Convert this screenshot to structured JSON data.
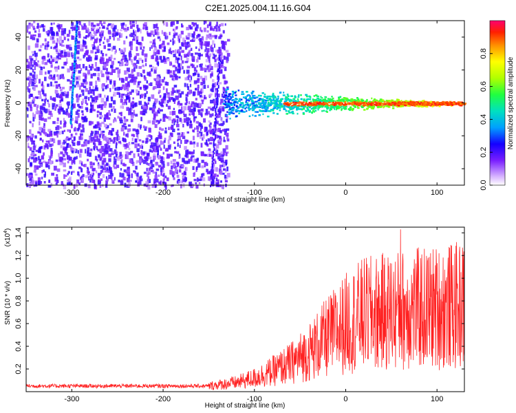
{
  "title": "C2E1.2025.004.11.16.G04",
  "chart_data": [
    {
      "type": "heatmap",
      "xlabel": "Height of straight line (km)",
      "ylabel": "Frequency (Hz)",
      "xlim": [
        -350,
        130
      ],
      "ylim": [
        -50,
        50
      ],
      "x_ticks": [
        "-300",
        "-200",
        "-100",
        "0",
        "100"
      ],
      "x_tick_values": [
        -300,
        -200,
        -100,
        0,
        100
      ],
      "y_ticks": [
        "-40",
        "-20",
        "0",
        "20",
        "40"
      ],
      "y_tick_values": [
        -40,
        -20,
        0,
        20,
        40
      ],
      "colorbar": {
        "label": "Normalized spectral amplitude",
        "range": [
          0,
          1
        ],
        "ticks": [
          "0.0",
          "0.2",
          "0.4",
          "0.6",
          "0.8"
        ],
        "tick_values": [
          0.0,
          0.2,
          0.4,
          0.6,
          0.8
        ]
      },
      "features": {
        "noise_region_x": [
          -350,
          -135
        ],
        "signal_line_freq_hz": 0,
        "signal_onset_x": -135,
        "sloped_trace": [
          {
            "x": -302,
            "y": -12
          },
          {
            "x": -295,
            "y": 50
          }
        ]
      }
    },
    {
      "type": "line",
      "xlabel": "Height of straight line (km)",
      "ylabel": "SNR (10 * v/v)",
      "y_scale_label": "(x10",
      "y_scale_exp": "4",
      "y_scale_close": ")",
      "xlim": [
        -350,
        130
      ],
      "ylim": [
        0,
        1.45
      ],
      "x_ticks": [
        "-300",
        "-200",
        "-100",
        "0",
        "100"
      ],
      "x_tick_values": [
        -300,
        -200,
        -100,
        0,
        100
      ],
      "y_ticks": [
        "0.2",
        "0.4",
        "0.6",
        "0.8",
        "1.0",
        "1.2",
        "1.4"
      ],
      "y_tick_values": [
        0.2,
        0.4,
        0.6,
        0.8,
        1.0,
        1.2,
        1.4
      ],
      "color": "#ff2020",
      "envelope": [
        {
          "x": -350,
          "y": 0.05
        },
        {
          "x": -150,
          "y": 0.05
        },
        {
          "x": -120,
          "y": 0.08
        },
        {
          "x": -100,
          "y": 0.12
        },
        {
          "x": -80,
          "y": 0.18
        },
        {
          "x": -60,
          "y": 0.25
        },
        {
          "x": -40,
          "y": 0.35
        },
        {
          "x": -20,
          "y": 0.48
        },
        {
          "x": 0,
          "y": 0.6
        },
        {
          "x": 20,
          "y": 0.68
        },
        {
          "x": 60,
          "y": 0.72
        },
        {
          "x": 100,
          "y": 0.74
        },
        {
          "x": 130,
          "y": 0.76
        }
      ],
      "peak": {
        "x": 60,
        "y": 1.43
      }
    }
  ]
}
